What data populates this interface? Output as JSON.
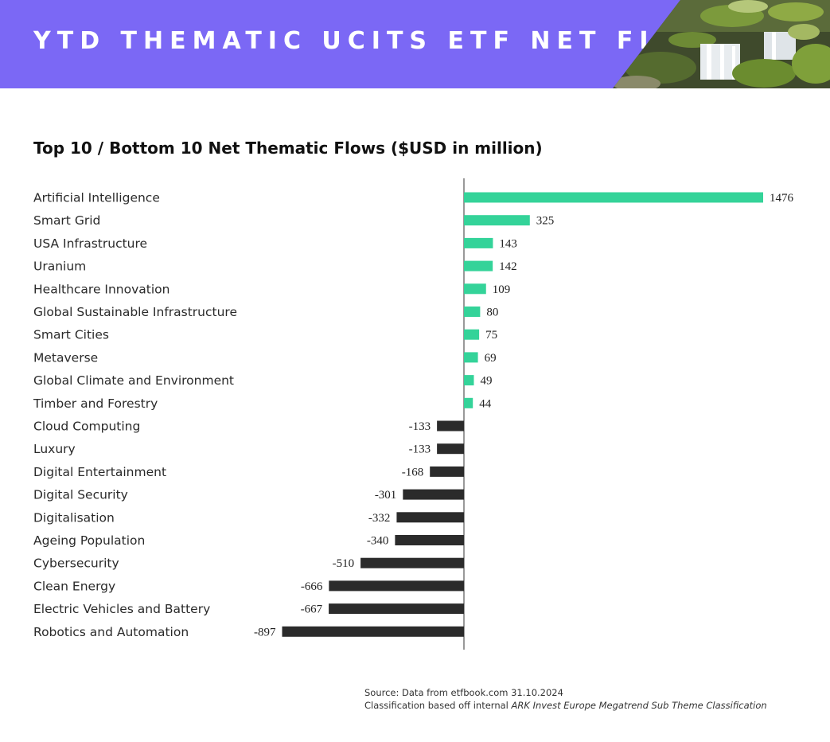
{
  "header": {
    "title": "YTD THEMATIC UCITS ETF NET FLOWS"
  },
  "colors": {
    "banner": "#7b68f5",
    "positive": "#34d399",
    "negative": "#2b2b2b"
  },
  "chart_data": {
    "type": "bar",
    "orientation": "horizontal",
    "title": "Top 10 / Bottom 10 Net Thematic Flows ($USD in million)",
    "categories": [
      "Artificial Intelligence",
      "Smart Grid",
      "USA Infrastructure",
      "Uranium",
      "Healthcare Innovation",
      "Global Sustainable Infrastructure",
      "Smart Cities",
      "Metaverse",
      "Global Climate and Environment",
      "Timber and Forestry",
      "Cloud Computing",
      "Luxury",
      "Digital Entertainment",
      "Digital Security",
      "Digitalisation",
      "Ageing Population",
      "Cybersecurity",
      "Clean Energy",
      "Electric Vehicles and Battery",
      "Robotics and Automation"
    ],
    "values": [
      1476,
      325,
      143,
      142,
      109,
      80,
      75,
      69,
      49,
      44,
      -133,
      -133,
      -168,
      -301,
      -332,
      -340,
      -510,
      -666,
      -667,
      -897
    ],
    "xlim": [
      -897,
      1476
    ],
    "grid": false,
    "legend": "none"
  },
  "footer": {
    "source": "Source: Data from etfbook.com 31.10.2024",
    "classification_prefix": "Classification based off internal ",
    "classification_italic": "ARK Invest Europe Megatrend Sub Theme Classification"
  }
}
